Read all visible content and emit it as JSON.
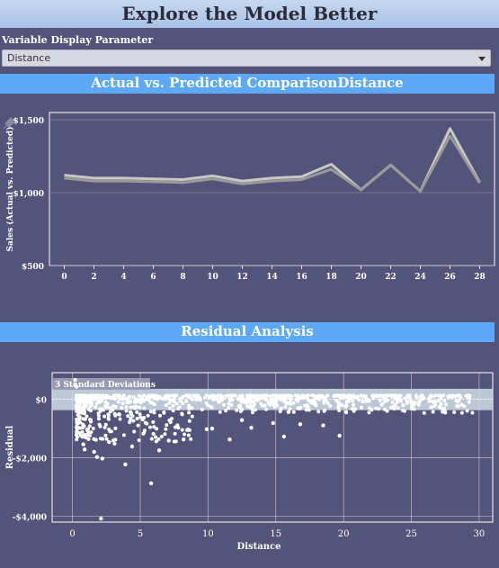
{
  "header": {
    "title": "Explore the Model Better"
  },
  "parameter": {
    "label": "Variable Display Parameter",
    "value": "Distance"
  },
  "sections": {
    "comparison_title": "Actual vs. Predicted ComparisonDistance",
    "residual_title": "Residual Analysis"
  },
  "colors": {
    "background": "#545379",
    "accent_bar": "#5da9f8",
    "line_actual": "#c8c8c8",
    "line_predicted": "#9a9a9a",
    "band": "#d0dde8"
  },
  "chart_data": [
    {
      "type": "line",
      "xlabel": "",
      "ylabel": "Sales (Actual vs. Predicted)",
      "x": [
        0,
        2,
        4,
        6,
        8,
        10,
        12,
        14,
        16,
        18,
        20,
        22,
        24,
        26,
        28
      ],
      "xticks": [
        "0",
        "2",
        "4",
        "6",
        "8",
        "10",
        "12",
        "14",
        "16",
        "18",
        "20",
        "22",
        "24",
        "26",
        "28"
      ],
      "ylim": [
        500,
        1550
      ],
      "yticks": [
        500,
        1000,
        1500
      ],
      "ytick_labels": [
        "$500",
        "$1,000",
        "$1,500"
      ],
      "series": [
        {
          "values": [
            1120,
            1100,
            1100,
            1095,
            1090,
            1115,
            1080,
            1100,
            1110,
            1195,
            1020,
            1190,
            1010,
            1440,
            1070
          ]
        },
        {
          "values": [
            1100,
            1080,
            1080,
            1075,
            1070,
            1095,
            1060,
            1080,
            1090,
            1160,
            1020,
            1190,
            1010,
            1390,
            1065
          ]
        }
      ]
    },
    {
      "type": "scatter",
      "xlabel": "Distance",
      "ylabel": "Residual",
      "xlim": [
        -1.5,
        31
      ],
      "ylim": [
        -4200,
        900
      ],
      "xticks": [
        0,
        5,
        10,
        15,
        20,
        25,
        30
      ],
      "yticks": [
        0,
        -2000,
        -4000
      ],
      "ytick_labels": [
        "$0",
        "-$2,000",
        "-$4,000"
      ],
      "band": {
        "label": "3 Standard Deviations",
        "upper": 350,
        "lower": -380
      },
      "points": [
        [
          0.2,
          650
        ],
        [
          0.2,
          480
        ],
        [
          0.3,
          420
        ],
        [
          2.1,
          -4080
        ],
        [
          5.8,
          -2880
        ],
        [
          3.9,
          -2230
        ],
        [
          1.8,
          -1980
        ],
        [
          2.2,
          -2030
        ],
        [
          0.9,
          -1720
        ],
        [
          0.8,
          -1550
        ],
        [
          1.6,
          -1800
        ],
        [
          19.7,
          -1250
        ],
        [
          15.6,
          -1280
        ],
        [
          18.5,
          -900
        ],
        [
          27.5,
          -460
        ],
        [
          6.4,
          -1750
        ],
        [
          7.1,
          -1420
        ],
        [
          8.2,
          -1380
        ],
        [
          11.6,
          -1380
        ],
        [
          9.9,
          -1030
        ],
        [
          10.3,
          -1010
        ],
        [
          13.2,
          -980
        ],
        [
          12.5,
          -720
        ],
        [
          14.8,
          -820
        ],
        [
          16.8,
          -860
        ],
        [
          4.4,
          -1620
        ],
        [
          3.1,
          -1520
        ],
        [
          2.7,
          -1470
        ]
      ],
      "cloud": {
        "x_min": 0.3,
        "x_max": 29.5,
        "dense_until": 9,
        "y_top": 120,
        "y_bottom_near": -1500,
        "y_bottom_far": -480
      }
    }
  ]
}
